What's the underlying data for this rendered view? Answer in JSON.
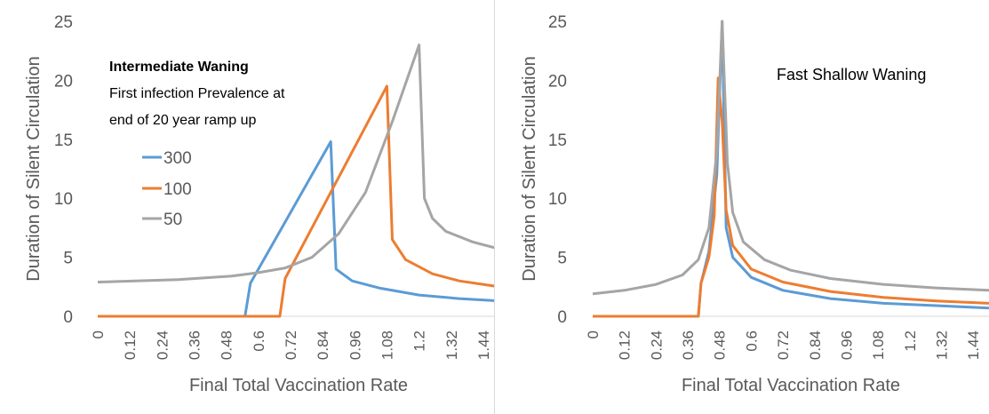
{
  "chart_data": [
    {
      "type": "line",
      "ylabel": "Duration of Silent Circulation",
      "xlabel": "Final Total Vaccination Rate",
      "ylim": [
        0,
        25
      ],
      "yticks": [
        0,
        5,
        10,
        15,
        20,
        25
      ],
      "xlim": [
        0,
        1.5
      ],
      "xticks": [
        "0",
        "0.12",
        "0.24",
        "0.36",
        "0.48",
        "0.6",
        "0.72",
        "0.84",
        "0.96",
        "1.08",
        "1.2",
        "1.32",
        "1.44"
      ],
      "grid": false,
      "annotation_title": "Intermediate Waning",
      "annotation_lines": [
        "First infection Prevalence at",
        "end of 20 year ramp up"
      ],
      "legend_position": "upper-left inside",
      "series": [
        {
          "name": "300",
          "color": "#5b9bd5",
          "x": [
            0,
            0.55,
            0.57,
            0.87,
            0.89,
            0.95,
            1.05,
            1.2,
            1.35,
            1.5
          ],
          "y": [
            0,
            0,
            2.8,
            14.8,
            4.0,
            3.0,
            2.4,
            1.8,
            1.5,
            1.3
          ]
        },
        {
          "name": "100",
          "color": "#ed7d31",
          "x": [
            0,
            0.68,
            0.7,
            1.08,
            1.1,
            1.15,
            1.25,
            1.35,
            1.5
          ],
          "y": [
            0,
            0,
            3.2,
            19.5,
            6.5,
            4.8,
            3.6,
            3.0,
            2.5
          ]
        },
        {
          "name": "50",
          "color": "#a5a5a5",
          "x": [
            0,
            0.3,
            0.5,
            0.6,
            0.7,
            0.8,
            0.9,
            1.0,
            1.1,
            1.2,
            1.22,
            1.25,
            1.3,
            1.4,
            1.5
          ],
          "y": [
            2.9,
            3.1,
            3.4,
            3.7,
            4.1,
            5.0,
            7.0,
            10.5,
            16.5,
            23.0,
            10.0,
            8.3,
            7.2,
            6.3,
            5.7
          ]
        }
      ]
    },
    {
      "type": "line",
      "ylabel": "Duration of Silent Circulation",
      "xlabel": "Final Total Vaccination Rate",
      "ylim": [
        0,
        25
      ],
      "yticks": [
        0,
        5,
        10,
        15,
        20,
        25
      ],
      "xlim": [
        0,
        1.5
      ],
      "xticks": [
        "0",
        "0.12",
        "0.24",
        "0.36",
        "0.48",
        "0.6",
        "0.72",
        "0.84",
        "0.96",
        "1.08",
        "1.2",
        "1.32",
        "1.44"
      ],
      "grid": false,
      "annotation_title": "Fast Shallow Waning",
      "series": [
        {
          "name": "300",
          "color": "#5b9bd5",
          "x": [
            0,
            0.4,
            0.41,
            0.44,
            0.47,
            0.49,
            0.505,
            0.53,
            0.6,
            0.72,
            0.9,
            1.1,
            1.3,
            1.5
          ],
          "y": [
            0,
            0,
            2.8,
            5.5,
            12.0,
            25.0,
            7.5,
            5.0,
            3.3,
            2.2,
            1.5,
            1.1,
            0.9,
            0.7
          ]
        },
        {
          "name": "100",
          "color": "#ed7d31",
          "x": [
            0,
            0.4,
            0.41,
            0.44,
            0.46,
            0.475,
            0.49,
            0.505,
            0.53,
            0.6,
            0.72,
            0.9,
            1.1,
            1.3,
            1.5
          ],
          "y": [
            0,
            0,
            2.8,
            5.0,
            8.5,
            20.2,
            16.5,
            9.0,
            6.0,
            4.0,
            2.9,
            2.1,
            1.6,
            1.3,
            1.1
          ]
        },
        {
          "name": "50",
          "color": "#a5a5a5",
          "x": [
            0,
            0.12,
            0.24,
            0.34,
            0.4,
            0.44,
            0.47,
            0.49,
            0.51,
            0.53,
            0.57,
            0.65,
            0.75,
            0.9,
            1.1,
            1.3,
            1.5
          ],
          "y": [
            1.9,
            2.2,
            2.7,
            3.5,
            4.8,
            7.5,
            14.0,
            25.0,
            13.0,
            8.8,
            6.3,
            4.8,
            3.9,
            3.2,
            2.7,
            2.4,
            2.2
          ]
        }
      ]
    }
  ]
}
